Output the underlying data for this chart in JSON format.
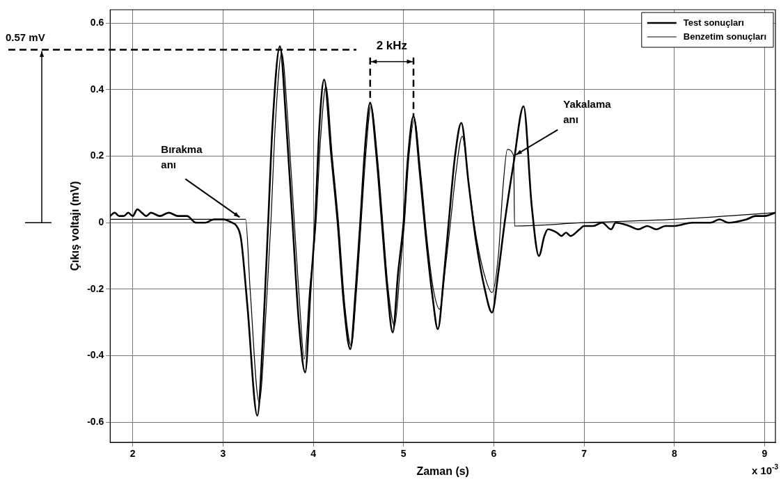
{
  "chart_data": {
    "type": "line",
    "xlabel": "Zaman (s)",
    "ylabel": "Çıkış voltajı (mV)",
    "xlim": [
      1.75,
      9.12
    ],
    "xticks": [
      2,
      3,
      4,
      5,
      6,
      7,
      8,
      9
    ],
    "ylim": [
      -0.66,
      0.64
    ],
    "yticks": [
      -0.6,
      -0.4,
      -0.2,
      0,
      0.2,
      0.4,
      0.6
    ],
    "grid": true,
    "legend": "top right",
    "line_style": "solid",
    "marker": "none",
    "series": [
      {
        "name": "Test sonuçları",
        "color": "#000000",
        "x": [
          1.75,
          1.8,
          1.85,
          1.9,
          1.95,
          2.0,
          2.05,
          2.1,
          2.15,
          2.2,
          2.3,
          2.4,
          2.5,
          2.6,
          2.7,
          2.8,
          2.9,
          3.0,
          3.1,
          3.15,
          3.2,
          3.27,
          3.38,
          3.45,
          3.5,
          3.55,
          3.63,
          3.7,
          3.77,
          3.84,
          3.91,
          3.97,
          4.02,
          4.07,
          4.12,
          4.2,
          4.27,
          4.34,
          4.41,
          4.47,
          4.52,
          4.58,
          4.63,
          4.7,
          4.76,
          4.82,
          4.88,
          4.94,
          5.0,
          5.05,
          5.11,
          5.18,
          5.25,
          5.32,
          5.38,
          5.45,
          5.5,
          5.57,
          5.64,
          5.72,
          5.8,
          5.9,
          5.98,
          6.05,
          6.12,
          6.22,
          6.33,
          6.42,
          6.5,
          6.56,
          6.6,
          6.7,
          6.75,
          6.8,
          6.85,
          6.95,
          7.0,
          7.1,
          7.2,
          7.3,
          7.35,
          7.5,
          7.6,
          7.7,
          7.8,
          7.9,
          8.0,
          8.2,
          8.4,
          8.5,
          8.6,
          8.8,
          8.9,
          9.0,
          9.12
        ],
        "values": [
          0.02,
          0.03,
          0.02,
          0.02,
          0.03,
          0.02,
          0.04,
          0.03,
          0.02,
          0.03,
          0.02,
          0.03,
          0.02,
          0.02,
          0.0,
          0.0,
          0.01,
          0.01,
          0.0,
          -0.01,
          -0.05,
          -0.25,
          -0.58,
          -0.3,
          0.0,
          0.3,
          0.53,
          0.3,
          0.0,
          -0.3,
          -0.45,
          -0.2,
          0.0,
          0.3,
          0.43,
          0.2,
          0.0,
          -0.25,
          -0.38,
          -0.2,
          0.0,
          0.25,
          0.36,
          0.2,
          0.0,
          -0.2,
          -0.33,
          -0.15,
          0.0,
          0.2,
          0.32,
          0.15,
          -0.05,
          -0.22,
          -0.32,
          -0.15,
          0.0,
          0.2,
          0.3,
          0.12,
          -0.05,
          -0.2,
          -0.27,
          -0.15,
          0.0,
          0.18,
          0.35,
          0.05,
          -0.1,
          -0.04,
          -0.02,
          -0.03,
          -0.04,
          -0.03,
          -0.04,
          -0.02,
          -0.01,
          -0.01,
          0.0,
          -0.02,
          0.0,
          -0.01,
          -0.02,
          -0.01,
          -0.02,
          -0.01,
          -0.01,
          0.0,
          0.0,
          0.01,
          0.0,
          0.01,
          0.02,
          0.02,
          0.03
        ]
      },
      {
        "name": "Benzetim sonuçları",
        "color": "#000000",
        "x": [
          1.75,
          3.25,
          3.3,
          3.4,
          3.48,
          3.53,
          3.58,
          3.65,
          3.72,
          3.79,
          3.85,
          3.9,
          3.96,
          4.03,
          4.08,
          4.14,
          4.21,
          4.28,
          4.35,
          4.42,
          4.48,
          4.53,
          4.58,
          4.64,
          4.71,
          4.77,
          4.83,
          4.9,
          4.96,
          5.01,
          5.06,
          5.12,
          5.19,
          5.26,
          5.33,
          5.4,
          5.47,
          5.52,
          5.58,
          5.65,
          5.73,
          5.81,
          5.91,
          5.98,
          6.05,
          6.1,
          6.15,
          6.22,
          6.23,
          7.0,
          8.0,
          9.12
        ],
        "values": [
          0.01,
          0.01,
          -0.2,
          -0.54,
          -0.25,
          0.0,
          0.3,
          0.51,
          0.3,
          0.0,
          -0.25,
          -0.41,
          -0.2,
          0.0,
          0.25,
          0.41,
          0.2,
          0.0,
          -0.25,
          -0.37,
          -0.2,
          0.0,
          0.2,
          0.35,
          0.2,
          0.0,
          -0.2,
          -0.31,
          -0.15,
          0.0,
          0.2,
          0.31,
          0.15,
          -0.05,
          -0.2,
          -0.26,
          -0.12,
          0.0,
          0.15,
          0.26,
          0.1,
          -0.05,
          -0.17,
          -0.21,
          -0.1,
          0.1,
          0.22,
          0.2,
          -0.01,
          0.0,
          0.01,
          0.03
        ]
      }
    ],
    "ref_lines": [
      {
        "axis": "y",
        "value": 0.52,
        "label": "0.57 mV",
        "line_style": "dashed",
        "color": "#000000"
      },
      {
        "axis": "x",
        "value": 4.63,
        "line_style": "dashed",
        "color": "#000000"
      },
      {
        "axis": "x",
        "value": 5.11,
        "line_style": "dashed",
        "color": "#000000"
      }
    ],
    "annotations": [
      "2 kHz",
      {
        "text": "Bırakma anı",
        "x": 3.2,
        "y": 0.01
      },
      {
        "text": "Yakalama anı",
        "x": 6.23,
        "y": 0.2
      },
      "x 10$^{-3}$"
    ]
  }
}
